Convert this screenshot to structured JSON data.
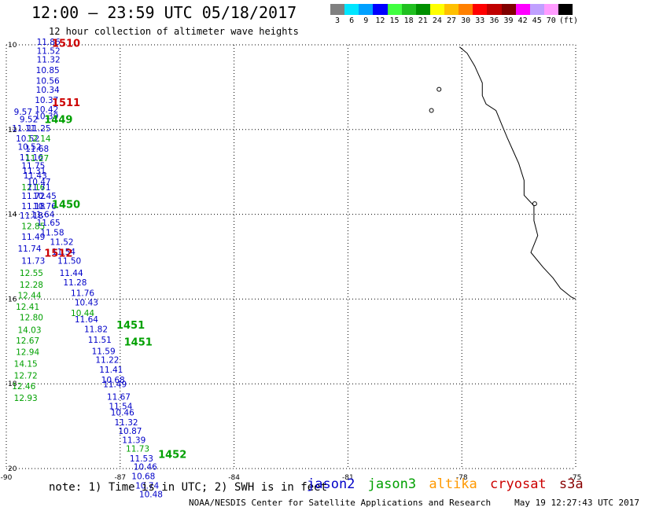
{
  "title": "12:00 – 23:59 UTC 05/18/2017",
  "subtitle": "12 hour collection of altimeter wave heights",
  "colorbar": {
    "colors": [
      "#808080",
      "#00e5ff",
      "#00a0ff",
      "#0000ff",
      "#40ff40",
      "#20c020",
      "#009000",
      "#ffff00",
      "#ffc000",
      "#ff8000",
      "#ff0000",
      "#c00000",
      "#800000",
      "#ff00ff",
      "#c0a0ff",
      "#ff9cff",
      "#000000"
    ],
    "labels": [
      "3",
      "6",
      "9",
      "12",
      "15",
      "18",
      "21",
      "24",
      "27",
      "30",
      "33",
      "36",
      "39",
      "42",
      "45",
      "70",
      "(ft)"
    ]
  },
  "map": {
    "lon_range": [
      -90,
      -75
    ],
    "lat_range": [
      20,
      10
    ],
    "x_ticks": [
      "-90",
      "-87",
      "-84",
      "-81",
      "-78",
      "-75"
    ],
    "y_ticks": [
      "10",
      "12",
      "14",
      "16",
      "18",
      "20"
    ],
    "coastline": [
      [
        -78.06,
        10.05
      ],
      [
        -77.86,
        10.2
      ],
      [
        -77.66,
        10.5
      ],
      [
        -77.46,
        10.9
      ],
      [
        -77.46,
        11.2
      ],
      [
        -77.36,
        11.4
      ],
      [
        -77.1,
        11.55
      ],
      [
        -76.94,
        11.9
      ],
      [
        -76.8,
        12.2
      ],
      [
        -76.65,
        12.5
      ],
      [
        -76.5,
        12.8
      ],
      [
        -76.36,
        13.2
      ],
      [
        -76.36,
        13.55
      ],
      [
        -76.1,
        13.8
      ],
      [
        -76.1,
        14.15
      ],
      [
        -76.0,
        14.5
      ],
      [
        -76.18,
        14.9
      ],
      [
        -75.86,
        15.25
      ],
      [
        -75.6,
        15.5
      ],
      [
        -75.4,
        15.75
      ],
      [
        -75.12,
        15.95
      ],
      [
        -75.0,
        16.0
      ]
    ],
    "islands": [
      [
        -78.8,
        11.55
      ],
      [
        -78.6,
        11.05
      ],
      [
        -76.08,
        13.75
      ]
    ]
  },
  "satellites": {
    "jason2": {
      "name": "jason2",
      "color": "#0000c8"
    },
    "jason3": {
      "name": "jason3",
      "color": "#00a000"
    },
    "altika": {
      "name": "altika",
      "color": "#ff9900"
    },
    "cryosat": {
      "name": "cryosat",
      "color": "#cc0000"
    },
    "s3a": {
      "name": "s3a",
      "color": "#880000"
    }
  },
  "time_labels": [
    {
      "text": "1510",
      "sat": "cryosat",
      "lon": -88.8,
      "lat": 10.05
    },
    {
      "text": "1511",
      "sat": "cryosat",
      "lon": -88.8,
      "lat": 11.45
    },
    {
      "text": "1449",
      "sat": "jason3",
      "lon": -89.0,
      "lat": 11.85
    },
    {
      "text": "1450",
      "sat": "jason3",
      "lon": -88.8,
      "lat": 13.85
    },
    {
      "text": "1512",
      "sat": "cryosat",
      "lon": -89.0,
      "lat": 15.0
    },
    {
      "text": "1451",
      "sat": "jason3",
      "lon": -87.1,
      "lat": 16.7
    },
    {
      "text": "1451",
      "sat": "jason3",
      "lon": -86.9,
      "lat": 17.1
    },
    {
      "text": "1452",
      "sat": "jason3",
      "lon": -86.0,
      "lat": 19.75
    }
  ],
  "wave_heights": [
    {
      "text": "11.86",
      "sat": "jason2",
      "lon": -89.2,
      "lat": 10.0
    },
    {
      "text": "11.52",
      "sat": "jason2",
      "lon": -89.2,
      "lat": 10.21
    },
    {
      "text": "11.32",
      "sat": "jason2",
      "lon": -89.2,
      "lat": 10.42
    },
    {
      "text": "10.85",
      "sat": "jason2",
      "lon": -89.22,
      "lat": 10.67
    },
    {
      "text": "10.56",
      "sat": "jason2",
      "lon": -89.22,
      "lat": 10.92
    },
    {
      "text": "10.34",
      "sat": "jason2",
      "lon": -89.22,
      "lat": 11.13
    },
    {
      "text": "10.37",
      "sat": "jason2",
      "lon": -89.25,
      "lat": 11.37
    },
    {
      "text": "10.42",
      "sat": "jason2",
      "lon": -89.25,
      "lat": 11.6
    },
    {
      "text": "10.39",
      "sat": "jason2",
      "lon": -89.25,
      "lat": 11.75
    },
    {
      "text": "9.57",
      "sat": "jason2",
      "lon": -89.8,
      "lat": 11.65
    },
    {
      "text": "9.52",
      "sat": "jason2",
      "lon": -89.65,
      "lat": 11.83
    },
    {
      "text": "11.11",
      "sat": "jason2",
      "lon": -89.85,
      "lat": 12.04
    },
    {
      "text": "11.25",
      "sat": "jason2",
      "lon": -89.45,
      "lat": 12.04
    },
    {
      "text": "10.52",
      "sat": "jason2",
      "lon": -89.75,
      "lat": 12.28
    },
    {
      "text": "12.14",
      "sat": "jason3",
      "lon": -89.45,
      "lat": 12.28
    },
    {
      "text": "10.52",
      "sat": "jason2",
      "lon": -89.7,
      "lat": 12.48
    },
    {
      "text": "11.68",
      "sat": "jason2",
      "lon": -89.5,
      "lat": 12.52
    },
    {
      "text": "11.16",
      "sat": "jason2",
      "lon": -89.65,
      "lat": 12.73
    },
    {
      "text": "11.27",
      "sat": "jason3",
      "lon": -89.5,
      "lat": 12.75
    },
    {
      "text": "11.75",
      "sat": "jason2",
      "lon": -89.6,
      "lat": 12.92
    },
    {
      "text": "11.31",
      "sat": "jason2",
      "lon": -89.58,
      "lat": 13.04
    },
    {
      "text": "11.43",
      "sat": "jason2",
      "lon": -89.55,
      "lat": 13.15
    },
    {
      "text": "10.47",
      "sat": "jason2",
      "lon": -89.45,
      "lat": 13.3
    },
    {
      "text": "12.16",
      "sat": "jason3",
      "lon": -89.6,
      "lat": 13.43
    },
    {
      "text": "11.71",
      "sat": "jason2",
      "lon": -89.45,
      "lat": 13.43
    },
    {
      "text": "11.72",
      "sat": "jason2",
      "lon": -89.6,
      "lat": 13.64
    },
    {
      "text": "10.45",
      "sat": "jason2",
      "lon": -89.3,
      "lat": 13.64
    },
    {
      "text": "11.18",
      "sat": "jason2",
      "lon": -89.6,
      "lat": 13.88
    },
    {
      "text": "10.76",
      "sat": "jason2",
      "lon": -89.3,
      "lat": 13.88
    },
    {
      "text": "11.18",
      "sat": "jason2",
      "lon": -89.65,
      "lat": 14.1
    },
    {
      "text": "11.64",
      "sat": "jason2",
      "lon": -89.35,
      "lat": 14.07
    },
    {
      "text": "11.65",
      "sat": "jason2",
      "lon": -89.2,
      "lat": 14.27
    },
    {
      "text": "12.85",
      "sat": "jason3",
      "lon": -89.6,
      "lat": 14.35
    },
    {
      "text": "11.58",
      "sat": "jason2",
      "lon": -89.1,
      "lat": 14.5
    },
    {
      "text": "11.49",
      "sat": "jason2",
      "lon": -89.6,
      "lat": 14.6
    },
    {
      "text": "11.52",
      "sat": "jason2",
      "lon": -88.85,
      "lat": 14.72
    },
    {
      "text": "11.74",
      "sat": "jason2",
      "lon": -89.7,
      "lat": 14.88
    },
    {
      "text": "11.54",
      "sat": "jason2",
      "lon": -88.8,
      "lat": 14.95
    },
    {
      "text": "11.73",
      "sat": "jason2",
      "lon": -89.6,
      "lat": 15.17
    },
    {
      "text": "11.50",
      "sat": "jason2",
      "lon": -88.65,
      "lat": 15.17
    },
    {
      "text": "12.55",
      "sat": "jason3",
      "lon": -89.65,
      "lat": 15.45
    },
    {
      "text": "11.44",
      "sat": "jason2",
      "lon": -88.6,
      "lat": 15.45
    },
    {
      "text": "12.28",
      "sat": "jason3",
      "lon": -89.65,
      "lat": 15.73
    },
    {
      "text": "11.28",
      "sat": "jason2",
      "lon": -88.5,
      "lat": 15.68
    },
    {
      "text": "12.44",
      "sat": "jason3",
      "lon": -89.7,
      "lat": 15.98
    },
    {
      "text": "11.76",
      "sat": "jason2",
      "lon": -88.3,
      "lat": 15.93
    },
    {
      "text": "12.41",
      "sat": "jason3",
      "lon": -89.75,
      "lat": 16.25
    },
    {
      "text": "10.43",
      "sat": "jason2",
      "lon": -88.2,
      "lat": 16.15
    },
    {
      "text": "10.44",
      "sat": "jason3",
      "lon": -88.3,
      "lat": 16.4
    },
    {
      "text": "12.80",
      "sat": "jason3",
      "lon": -89.65,
      "lat": 16.5
    },
    {
      "text": "11.64",
      "sat": "jason2",
      "lon": -88.2,
      "lat": 16.55
    },
    {
      "text": "14.03",
      "sat": "jason3",
      "lon": -89.7,
      "lat": 16.8
    },
    {
      "text": "11.82",
      "sat": "jason2",
      "lon": -87.95,
      "lat": 16.78
    },
    {
      "text": "12.67",
      "sat": "jason3",
      "lon": -89.75,
      "lat": 17.05
    },
    {
      "text": "11.51",
      "sat": "jason2",
      "lon": -87.85,
      "lat": 17.03
    },
    {
      "text": "12.94",
      "sat": "jason3",
      "lon": -89.75,
      "lat": 17.32
    },
    {
      "text": "11.59",
      "sat": "jason2",
      "lon": -87.75,
      "lat": 17.3
    },
    {
      "text": "14.15",
      "sat": "jason3",
      "lon": -89.8,
      "lat": 17.6
    },
    {
      "text": "11.22",
      "sat": "jason2",
      "lon": -87.65,
      "lat": 17.5
    },
    {
      "text": "11.41",
      "sat": "jason2",
      "lon": -87.55,
      "lat": 17.74
    },
    {
      "text": "12.72",
      "sat": "jason3",
      "lon": -89.8,
      "lat": 17.88
    },
    {
      "text": "10.68",
      "sat": "jason2",
      "lon": -87.5,
      "lat": 17.98
    },
    {
      "text": "12.46",
      "sat": "jason3",
      "lon": -89.85,
      "lat": 18.13
    },
    {
      "text": "11.49",
      "sat": "jason2",
      "lon": -87.45,
      "lat": 18.08
    },
    {
      "text": "12.93",
      "sat": "jason3",
      "lon": -89.8,
      "lat": 18.4
    },
    {
      "text": "11.67",
      "sat": "jason2",
      "lon": -87.35,
      "lat": 18.38
    },
    {
      "text": "11.54",
      "sat": "jason2",
      "lon": -87.3,
      "lat": 18.6
    },
    {
      "text": "10.46",
      "sat": "jason2",
      "lon": -87.25,
      "lat": 18.75
    },
    {
      "text": "11.32",
      "sat": "jason2",
      "lon": -87.15,
      "lat": 18.98
    },
    {
      "text": "10.87",
      "sat": "jason2",
      "lon": -87.05,
      "lat": 19.18
    },
    {
      "text": "11.39",
      "sat": "jason2",
      "lon": -86.95,
      "lat": 19.4
    },
    {
      "text": "11.73",
      "sat": "jason3",
      "lon": -86.85,
      "lat": 19.6
    },
    {
      "text": "11.53",
      "sat": "jason2",
      "lon": -86.75,
      "lat": 19.83
    },
    {
      "text": "10.46",
      "sat": "jason2",
      "lon": -86.65,
      "lat": 20.03
    },
    {
      "text": "10.68",
      "sat": "jason2",
      "lon": -86.7,
      "lat": 20.25
    },
    {
      "text": "10.74",
      "sat": "jason2",
      "lon": -86.6,
      "lat": 20.47
    },
    {
      "text": "10.48",
      "sat": "jason2",
      "lon": -86.5,
      "lat": 20.68
    }
  ],
  "notes": "note: 1) Time is in UTC; 2) SWH is in feet",
  "footer": {
    "org": "NOAA/NESDIS Center for Satellite Applications and Research",
    "timestamp": "May 19 12:27:43 UTC 2017"
  }
}
